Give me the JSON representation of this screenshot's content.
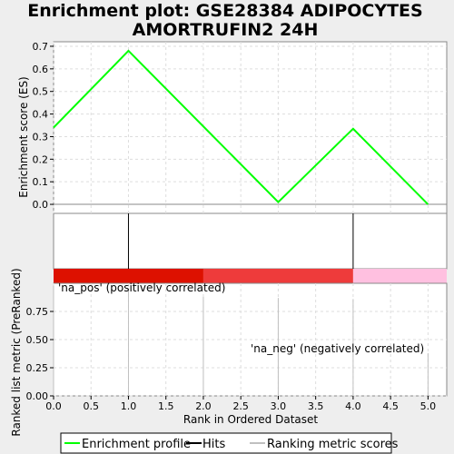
{
  "chart_data": {
    "type": "line",
    "title_lines": [
      "Enrichment plot: GSE28384 ADIPOCYTES",
      "AMORTRUFIN2 24H"
    ],
    "xlabel": "Rank in Ordered Dataset",
    "ylabel_top": "Enrichment score (ES)",
    "ylabel_bottom": "Ranked list metric (PreRanked)",
    "xlim": [
      0,
      5.25
    ],
    "ylim_es": [
      -0.04,
      0.72
    ],
    "ylim_metric": [
      0,
      1.0
    ],
    "x_ticks": [
      "0.0",
      "0.5",
      "1.0",
      "1.5",
      "2.0",
      "2.5",
      "3.0",
      "3.5",
      "4.0",
      "4.5",
      "5.0"
    ],
    "es_ticks": [
      "0.0",
      "0.1",
      "0.2",
      "0.3",
      "0.4",
      "0.5",
      "0.6",
      "0.7"
    ],
    "metric_ticks": [
      "0.00",
      "0.25",
      "0.50",
      "0.75"
    ],
    "enrichment_profile": {
      "x": [
        0,
        1,
        2,
        3,
        4,
        5
      ],
      "y": [
        0.34,
        0.68,
        0.345,
        0.01,
        0.335,
        0.0
      ],
      "color": "#00ff00"
    },
    "hits": [
      1,
      4
    ],
    "ranking_metric_scores": {
      "x": [
        0,
        1,
        2,
        3,
        4,
        5
      ],
      "y": [
        0.98,
        0.95,
        0.88,
        0.87,
        0.86,
        0.38
      ]
    },
    "color_bar": [
      {
        "from": 0,
        "to": 2,
        "color": "#dd1100"
      },
      {
        "from": 2,
        "to": 4,
        "color": "#ee3b3b"
      },
      {
        "from": 4,
        "to": 5.25,
        "color": "#ffc0e0"
      }
    ],
    "annotations": {
      "pos": "'na_pos' (positively correlated)",
      "neg": "'na_neg' (negatively correlated)",
      "pos_color": "#cc0000",
      "neg_color": "#0000cc"
    },
    "legend": {
      "placement": "bottom",
      "items": [
        {
          "label": "Enrichment profile",
          "color": "#00ff00"
        },
        {
          "label": "Hits",
          "color": "#000000"
        },
        {
          "label": "Ranking metric scores",
          "color": "#c0c0c0"
        }
      ]
    }
  }
}
